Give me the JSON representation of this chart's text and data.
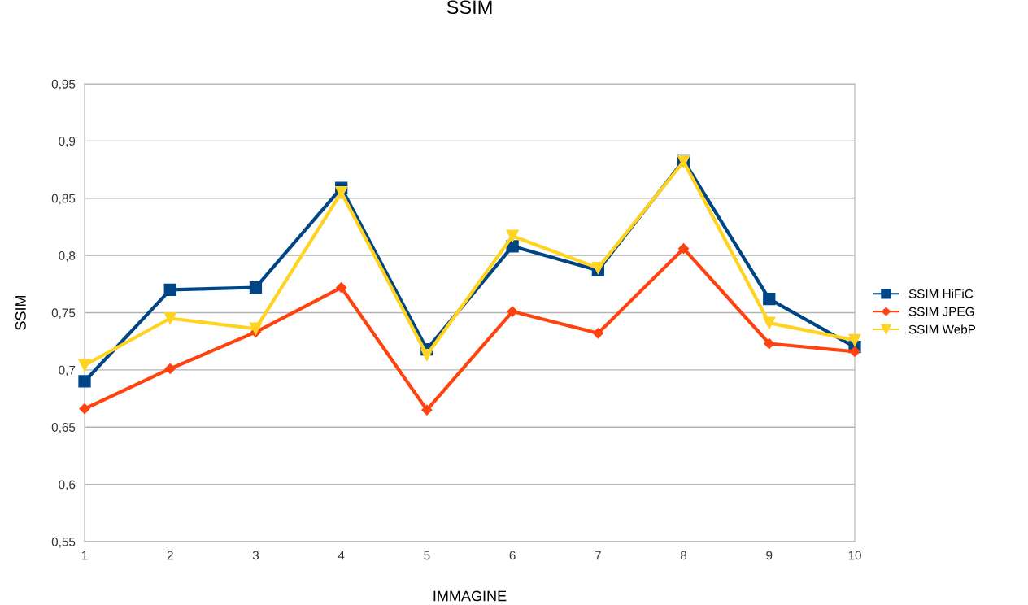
{
  "chart_data": {
    "type": "line",
    "title": "SSIM",
    "xlabel": "IMMAGINE",
    "ylabel": "SSIM",
    "x": [
      1,
      2,
      3,
      4,
      5,
      6,
      7,
      8,
      9,
      10
    ],
    "series": [
      {
        "name": "SSIM HiFiC",
        "color": "#004586",
        "marker": "square",
        "values": [
          0.69,
          0.77,
          0.772,
          0.859,
          0.718,
          0.808,
          0.787,
          0.883,
          0.762,
          0.72
        ]
      },
      {
        "name": "SSIM JPEG",
        "color": "#ff420e",
        "marker": "diamond",
        "values": [
          0.666,
          0.701,
          0.733,
          0.772,
          0.665,
          0.751,
          0.732,
          0.806,
          0.723,
          0.716
        ]
      },
      {
        "name": "SSIM WebP",
        "color": "#ffd320",
        "marker": "triangle",
        "values": [
          0.704,
          0.745,
          0.736,
          0.855,
          0.713,
          0.817,
          0.789,
          0.882,
          0.741,
          0.726
        ]
      }
    ],
    "xlim": [
      1,
      10
    ],
    "xticks": [
      1,
      2,
      3,
      4,
      5,
      6,
      7,
      8,
      9,
      10
    ],
    "ylim": [
      0.55,
      0.95
    ],
    "yticks": [
      {
        "value": 0.55,
        "label": "0,55"
      },
      {
        "value": 0.6,
        "label": "0,6"
      },
      {
        "value": 0.65,
        "label": "0,65"
      },
      {
        "value": 0.7,
        "label": "0,7"
      },
      {
        "value": 0.75,
        "label": "0,75"
      },
      {
        "value": 0.8,
        "label": "0,8"
      },
      {
        "value": 0.85,
        "label": "0,85"
      },
      {
        "value": 0.9,
        "label": "0,9"
      },
      {
        "value": 0.95,
        "label": "0,95"
      }
    ],
    "grid": "y",
    "legend": "right",
    "line_style": "solid"
  }
}
